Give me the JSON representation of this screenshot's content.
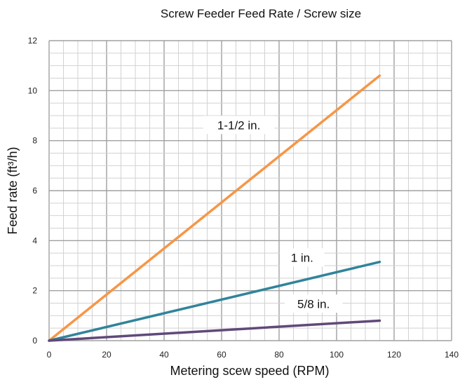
{
  "chart_data": {
    "type": "line",
    "title": "Screw Feeder Feed Rate / Screw size",
    "xlabel": "Metering scew speed (RPM)",
    "ylabel": "Feed rate (ft³/h)",
    "xlim": [
      0,
      140
    ],
    "ylim": [
      0,
      12
    ],
    "x_ticks": [
      "0",
      "20",
      "40",
      "60",
      "80",
      "100",
      "120",
      "140"
    ],
    "y_ticks": [
      "0",
      "2",
      "4",
      "6",
      "8",
      "10",
      "12"
    ],
    "grid": true,
    "series": [
      {
        "name": "1-1/2 in.",
        "color": "#f79646",
        "x": [
          0,
          115
        ],
        "y": [
          0,
          10.6
        ]
      },
      {
        "name": "1 in.",
        "color": "#31849b",
        "x": [
          0,
          115
        ],
        "y": [
          0,
          3.15
        ]
      },
      {
        "name": "5/8 in.",
        "color": "#60497a",
        "x": [
          0,
          115
        ],
        "y": [
          0,
          0.8
        ]
      }
    ]
  }
}
